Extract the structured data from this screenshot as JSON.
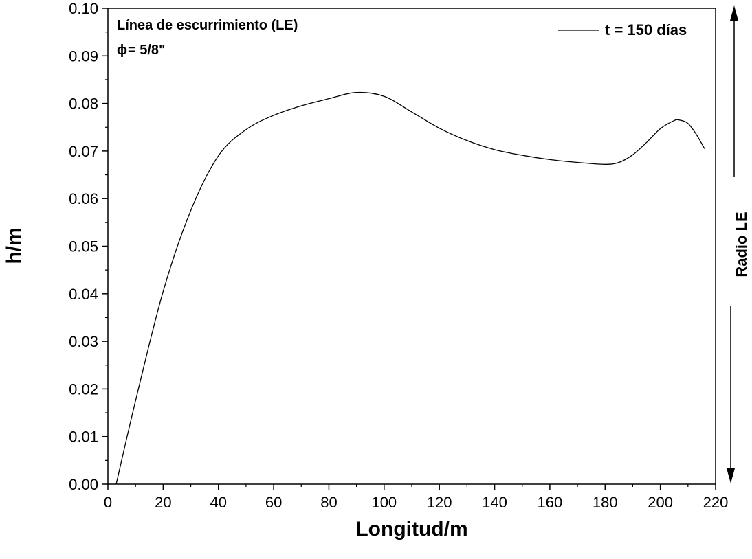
{
  "chart_data": {
    "type": "line",
    "xlabel": "Longitud/m",
    "ylabel": "h/m",
    "right_label": "Radio LE",
    "xlim": [
      0,
      220
    ],
    "ylim": [
      0,
      0.1
    ],
    "xticks": [
      "0",
      "20",
      "40",
      "60",
      "80",
      "100",
      "120",
      "140",
      "160",
      "180",
      "200",
      "220"
    ],
    "yticks": [
      "0.00",
      "0.01",
      "0.02",
      "0.03",
      "0.04",
      "0.05",
      "0.06",
      "0.07",
      "0.08",
      "0.09",
      "0.10"
    ],
    "grid": false,
    "legend_position": "top-right",
    "annotations": [
      "Línea de escurrimiento (LE)",
      "= 5/8\""
    ],
    "phi_symbol": "ϕ",
    "series": [
      {
        "name": "t = 150 días",
        "color": "#000000",
        "x": [
          3,
          10,
          20,
          30,
          40,
          50,
          60,
          70,
          80,
          90,
          100,
          110,
          120,
          130,
          140,
          150,
          160,
          170,
          180,
          185,
          190,
          195,
          200,
          205,
          207,
          210,
          213,
          216
        ],
        "y": [
          0.0,
          0.0175,
          0.0405,
          0.0575,
          0.069,
          0.0745,
          0.0775,
          0.0795,
          0.081,
          0.0823,
          0.0815,
          0.0782,
          0.0748,
          0.0722,
          0.0703,
          0.0691,
          0.0682,
          0.0676,
          0.0672,
          0.0676,
          0.0692,
          0.0718,
          0.0747,
          0.0764,
          0.0765,
          0.0758,
          0.0735,
          0.0705
        ]
      }
    ]
  }
}
